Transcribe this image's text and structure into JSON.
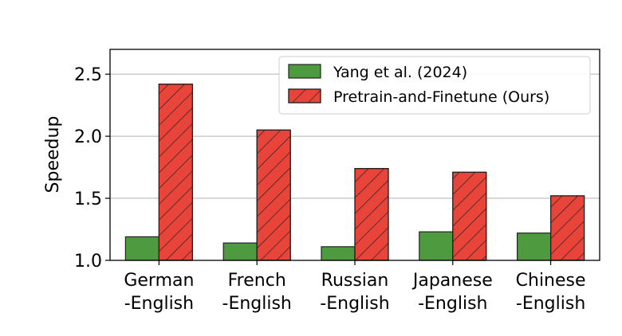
{
  "chart_data": {
    "type": "bar",
    "title": "",
    "xlabel": "",
    "ylabel": "Speedup",
    "ylim": [
      1.0,
      2.7
    ],
    "yticks": [
      "1.0",
      "1.5",
      "2.0",
      "2.5"
    ],
    "grid": "y",
    "legend_position": "top-right",
    "categories": [
      [
        "German",
        "-English"
      ],
      [
        "French",
        "-English"
      ],
      [
        "Russian",
        "-English"
      ],
      [
        "Japanese",
        "-English"
      ],
      [
        "Chinese",
        "-English"
      ]
    ],
    "series": [
      {
        "name": "Yang et al. (2024)",
        "values": [
          1.19,
          1.14,
          1.11,
          1.23,
          1.22
        ],
        "color": "#4e9a3f",
        "hatch": false
      },
      {
        "name": "Pretrain-and-Finetune (Ours)",
        "values": [
          2.42,
          2.05,
          1.74,
          1.71,
          1.52
        ],
        "color": "#e8443a",
        "hatch": true
      }
    ]
  }
}
